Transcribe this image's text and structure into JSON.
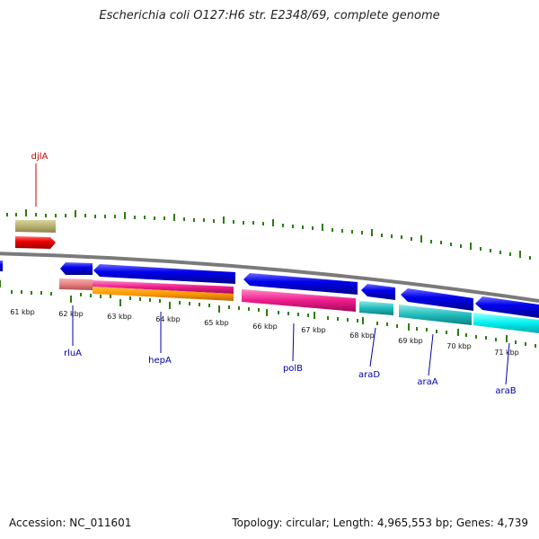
{
  "title": "Escherichia coli O127:H6 str. E2348/69, complete genome",
  "footer": {
    "accession": "Accession: NC_011601",
    "summary": "Topology: circular; Length: 4,965,553 bp; Genes: 4,739"
  },
  "colors": {
    "backbone": "#7f7f7f",
    "tick": "#2d7d0a",
    "forward_cds": "#0000ee",
    "reverse_cds": "#ee0000",
    "label_gene": "#0000aa",
    "label_reverse_gene": "#cc0000"
  },
  "scale_labels": [
    "61 kbp",
    "62 kbp",
    "63 kbp",
    "64 kbp",
    "65 kbp",
    "66 kbp",
    "67 kbp",
    "68 kbp",
    "69 kbp",
    "70 kbp",
    "71 kbp"
  ],
  "gene_labels": [
    {
      "name": "djlA",
      "strand": "reverse"
    },
    {
      "name": "rluA",
      "strand": "forward"
    },
    {
      "name": "hepA",
      "strand": "forward"
    },
    {
      "name": "polB",
      "strand": "forward"
    },
    {
      "name": "araD",
      "strand": "forward"
    },
    {
      "name": "araA",
      "strand": "forward"
    },
    {
      "name": "araB",
      "strand": "forward"
    }
  ]
}
